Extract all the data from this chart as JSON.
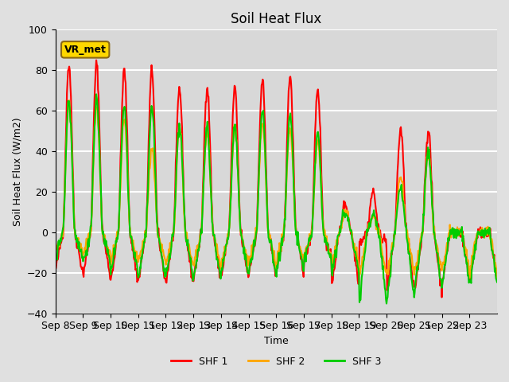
{
  "title": "Soil Heat Flux",
  "ylabel": "Soil Heat Flux (W/m2)",
  "xlabel": "Time",
  "ylim": [
    -40,
    100
  ],
  "legend_label": "VR_met",
  "series_labels": [
    "SHF 1",
    "SHF 2",
    "SHF 3"
  ],
  "series_colors": [
    "#ff0000",
    "#ffa500",
    "#00cc00"
  ],
  "line_width": 1.5,
  "background_color": "#e0e0e0",
  "axes_bg_color": "#d8d8d8",
  "grid_color": "#ffffff",
  "xtick_labels": [
    "Sep 8",
    "Sep 9",
    "Sep 10",
    "Sep 11",
    "Sep 12",
    "Sep 13",
    "Sep 14",
    "Sep 15",
    "Sep 16",
    "Sep 17",
    "Sep 18",
    "Sep 19",
    "Sep 20",
    "Sep 21",
    "Sep 22",
    "Sep 23"
  ],
  "ytick_values": [
    -40,
    -20,
    0,
    20,
    40,
    60,
    80,
    100
  ],
  "shf1_peaks": [
    83,
    83,
    80,
    80,
    71,
    72,
    71,
    75,
    77,
    71,
    14,
    20,
    51,
    50,
    0,
    0
  ],
  "shf1_night": [
    -19,
    -21,
    -24,
    -24,
    -25,
    -23,
    -22,
    -20,
    -19,
    -14,
    -25,
    -5,
    -29,
    -29,
    -24,
    -24
  ],
  "shf2_peaks": [
    65,
    62,
    55,
    42,
    52,
    50,
    52,
    54,
    52,
    45,
    10,
    8,
    28,
    38,
    0,
    0
  ],
  "shf2_night": [
    -10,
    -12,
    -15,
    -15,
    -17,
    -17,
    -16,
    -15,
    -14,
    -11,
    -16,
    -22,
    -20,
    -20,
    -18,
    -20
  ],
  "shf3_peaks": [
    65,
    66,
    62,
    61,
    53,
    52,
    52,
    60,
    58,
    48,
    10,
    9,
    22,
    40,
    0,
    0
  ],
  "shf3_night": [
    -12,
    -15,
    -20,
    -23,
    -22,
    -22,
    -20,
    -20,
    -19,
    -13,
    -20,
    -35,
    -33,
    -28,
    -25,
    -25
  ],
  "n_days": 16,
  "pts_per_day": 48,
  "noise_scale": 1.5,
  "random_seed": 42
}
